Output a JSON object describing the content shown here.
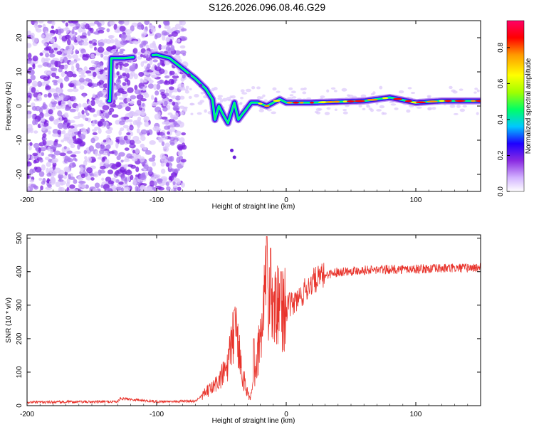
{
  "title": "S126.2026.096.08.46.G29",
  "chart_data": [
    {
      "type": "heatmap",
      "xlabel": "Height of straight line (km)",
      "ylabel": "Frequency (Hz)",
      "xlim": [
        -200,
        150
      ],
      "ylim": [
        -25,
        25
      ],
      "xticks": [
        -200,
        -100,
        0,
        100
      ],
      "xtick_labels": [
        "-200",
        "-100",
        "0",
        "100"
      ],
      "yticks": [
        -20,
        -10,
        0,
        10,
        20
      ],
      "ytick_labels": [
        "-20",
        "-10",
        "0",
        "10",
        "20"
      ],
      "colorbar": {
        "label": "Normalized spectral amplitude",
        "range": [
          0,
          0.95
        ],
        "ticks": [
          0,
          0.2,
          0.4,
          0.6,
          0.8
        ],
        "tick_labels": [
          "0.0",
          "0.2",
          "0.4",
          "0.6",
          "0.8"
        ],
        "colors": [
          "#ffffff",
          "#d3b3ff",
          "#8a2be2",
          "#1e00ff",
          "#00c8ff",
          "#00ff66",
          "#a0ff00",
          "#ffff00",
          "#ff9900",
          "#ff0000",
          "#ff0066"
        ]
      },
      "ridge": [
        {
          "x": -135,
          "y": 14
        },
        {
          "x": -125,
          "y": 14
        },
        {
          "x": -100,
          "y": 15
        },
        {
          "x": -90,
          "y": 14
        },
        {
          "x": -80,
          "y": 11
        },
        {
          "x": -70,
          "y": 8
        },
        {
          "x": -62,
          "y": 5
        },
        {
          "x": -57,
          "y": 2
        },
        {
          "x": -55,
          "y": -4
        },
        {
          "x": -52,
          "y": 0
        },
        {
          "x": -48,
          "y": -3
        },
        {
          "x": -45,
          "y": -5
        },
        {
          "x": -40,
          "y": 1
        },
        {
          "x": -37,
          "y": -4
        },
        {
          "x": -33,
          "y": -2
        },
        {
          "x": -27,
          "y": 1
        },
        {
          "x": -22,
          "y": 1
        },
        {
          "x": -15,
          "y": 0
        },
        {
          "x": -5,
          "y": 2
        },
        {
          "x": 0,
          "y": 1
        },
        {
          "x": 20,
          "y": 1
        },
        {
          "x": 60,
          "y": 1.5
        },
        {
          "x": 80,
          "y": 2.5
        },
        {
          "x": 100,
          "y": 1
        },
        {
          "x": 120,
          "y": 1.5
        },
        {
          "x": 150,
          "y": 1.5
        }
      ],
      "noise_region": {
        "x_from": -200,
        "x_to": -80,
        "y_from": -25,
        "y_to": 25
      }
    },
    {
      "type": "line",
      "xlabel": "Height of straight line (km)",
      "ylabel": "SNR (10 * v/v)",
      "xlim": [
        -200,
        150
      ],
      "ylim": [
        0,
        510
      ],
      "xticks": [
        -200,
        -100,
        0,
        100
      ],
      "xtick_labels": [
        "-200",
        "-100",
        "0",
        "100"
      ],
      "yticks": [
        0,
        100,
        200,
        300,
        400,
        500
      ],
      "ytick_labels": [
        "0",
        "100",
        "200",
        "300",
        "400",
        "500"
      ],
      "series": [
        {
          "name": "SNR",
          "color": "#e8322a",
          "envelope": [
            {
              "x": -200,
              "y": 10
            },
            {
              "x": -130,
              "y": 12
            },
            {
              "x": -128,
              "y": 22
            },
            {
              "x": -100,
              "y": 12
            },
            {
              "x": -70,
              "y": 14
            },
            {
              "x": -60,
              "y": 45
            },
            {
              "x": -55,
              "y": 60
            },
            {
              "x": -50,
              "y": 85
            },
            {
              "x": -45,
              "y": 120
            },
            {
              "x": -41,
              "y": 200
            },
            {
              "x": -39,
              "y": 235
            },
            {
              "x": -37,
              "y": 180
            },
            {
              "x": -33,
              "y": 80
            },
            {
              "x": -28,
              "y": 20
            },
            {
              "x": -25,
              "y": 60
            },
            {
              "x": -22,
              "y": 150
            },
            {
              "x": -19,
              "y": 230
            },
            {
              "x": -16,
              "y": 350
            },
            {
              "x": -13,
              "y": 300
            },
            {
              "x": -10,
              "y": 290
            },
            {
              "x": -5,
              "y": 290
            },
            {
              "x": 0,
              "y": 290
            },
            {
              "x": 10,
              "y": 320
            },
            {
              "x": 20,
              "y": 370
            },
            {
              "x": 30,
              "y": 390
            },
            {
              "x": 40,
              "y": 400
            },
            {
              "x": 60,
              "y": 405
            },
            {
              "x": 100,
              "y": 408
            },
            {
              "x": 150,
              "y": 412
            }
          ],
          "peaks": [
            {
              "x": -40,
              "y": 285
            },
            {
              "x": -15,
              "y": 505
            },
            {
              "x": -12,
              "y": 470
            },
            {
              "x": -4,
              "y": 400
            },
            {
              "x": -25,
              "y": 200
            }
          ]
        }
      ]
    }
  ]
}
